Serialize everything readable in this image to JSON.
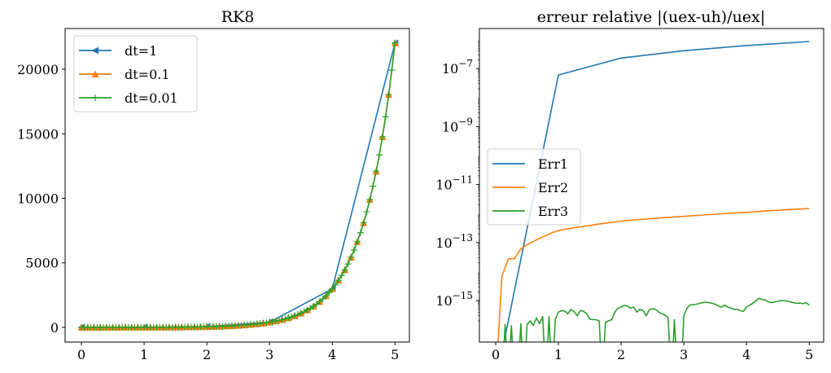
{
  "chart_data": [
    {
      "type": "line",
      "title": "RK8",
      "xlabel": "",
      "ylabel": "",
      "xlim": [
        -0.26,
        5.23
      ],
      "ylim": [
        -1136,
        23155
      ],
      "xticks": [
        0,
        1,
        2,
        3,
        4,
        5
      ],
      "xtick_labels": [
        "0",
        "1",
        "2",
        "3",
        "4",
        "5"
      ],
      "yticks": [
        0,
        5000,
        10000,
        15000,
        20000
      ],
      "ytick_labels": [
        "0",
        "5000",
        "10000",
        "15000",
        "20000"
      ],
      "legend_position": "upper-left",
      "series": [
        {
          "name": "dt=1",
          "color": "#1f77b4",
          "marker": "triangle-left",
          "x_start": 0,
          "x_step": 1,
          "values": [
            1,
            7.39,
            54.6,
            403.4,
            2981,
            22026
          ]
        },
        {
          "name": "dt=0.1",
          "color": "#ff7f0e",
          "marker": "triangle-up",
          "x_start": 0,
          "x_step": 0.1,
          "values": [
            1,
            1.22,
            1.49,
            1.82,
            2.23,
            2.72,
            3.32,
            4.06,
            4.95,
            6.05,
            7.39,
            9.03,
            11.0,
            13.5,
            16.4,
            20.1,
            24.5,
            30.0,
            36.6,
            44.7,
            54.6,
            66.7,
            81.5,
            99.5,
            121.5,
            148.4,
            181.3,
            221.4,
            270.4,
            330.3,
            403.4,
            492.7,
            601.8,
            735.1,
            897.8,
            1096.6,
            1339.4,
            1636,
            1998,
            2441,
            2981,
            3641,
            4447,
            5432,
            6634,
            8103,
            9897,
            12088,
            14765,
            18034,
            22026
          ]
        },
        {
          "name": "dt=0.01",
          "color": "#2ca02c",
          "marker": "plus",
          "x_start": 0,
          "x_step": 0.05,
          "values": [
            1,
            1.105,
            1.22,
            1.35,
            1.49,
            1.65,
            1.82,
            2.01,
            2.23,
            2.46,
            2.72,
            3.0,
            3.32,
            3.67,
            4.06,
            4.48,
            4.95,
            5.47,
            6.05,
            6.69,
            7.39,
            8.17,
            9.03,
            9.97,
            11.0,
            12.2,
            13.5,
            14.9,
            16.4,
            18.2,
            20.1,
            22.2,
            24.5,
            27.1,
            30.0,
            33.1,
            36.6,
            40.4,
            44.7,
            49.4,
            54.6,
            60.3,
            66.7,
            73.7,
            81.5,
            90.0,
            99.5,
            109.9,
            121.5,
            134.3,
            148.4,
            164,
            181.3,
            200.3,
            221.4,
            244.7,
            270.4,
            298.9,
            330.3,
            365,
            403.4,
            445.9,
            492.7,
            544.6,
            601.8,
            665.1,
            735.1,
            812.4,
            897.8,
            992.3,
            1096.6,
            1212,
            1339,
            1480,
            1636,
            1808,
            1998,
            2208,
            2441,
            2697,
            2981,
            3294,
            3641,
            4024,
            4447,
            4915,
            5432,
            6003,
            6634,
            7332,
            8103,
            8955,
            9897,
            10938,
            12088,
            13360,
            14765,
            16318,
            18034,
            19930,
            22026
          ]
        }
      ]
    },
    {
      "type": "line",
      "title": "erreur relative |(uex-uh)/uex|",
      "xlabel": "",
      "ylabel": "",
      "yscale": "log",
      "xlim": [
        -0.26,
        5.23
      ],
      "ylim_log10": [
        -16.43,
        -5.62
      ],
      "xticks": [
        0,
        1,
        2,
        3,
        4,
        5
      ],
      "xtick_labels": [
        "0",
        "1",
        "2",
        "3",
        "4",
        "5"
      ],
      "yticks_log10": [
        -7,
        -9,
        -11,
        -13,
        -15
      ],
      "ytick_labels": [
        {
          "base": "10",
          "exp": "−7"
        },
        {
          "base": "10",
          "exp": "−9"
        },
        {
          "base": "10",
          "exp": "−11"
        },
        {
          "base": "10",
          "exp": "−13"
        },
        {
          "base": "10",
          "exp": "−15"
        }
      ],
      "legend_position": "center-left",
      "series": [
        {
          "name": "Err1",
          "color": "#1f77b4",
          "x_start": 0,
          "x_step": 1,
          "values": [
            0,
            6e-08,
            2.3e-07,
            4.1e-07,
            6.2e-07,
            8.5e-07
          ]
        },
        {
          "name": "Err2",
          "color": "#ff7f0e",
          "x_start": 0,
          "x_step": 0.1,
          "values": [
            0,
            7e-15,
            2.7e-14,
            2.8e-14,
            6e-14,
            8.5e-14,
            1.1e-13,
            1.4e-13,
            1.75e-13,
            2.2e-13,
            2.6e-13,
            2.85e-13,
            3.1e-13,
            3.35e-13,
            3.6e-13,
            3.9e-13,
            4.2e-13,
            4.5e-13,
            4.8e-13,
            5.1e-13,
            5.5e-13,
            5.75e-13,
            6e-13,
            6.25e-13,
            6.5e-13,
            6.75e-13,
            7e-13,
            7.25e-13,
            7.5e-13,
            7.75e-13,
            8e-13,
            8.3e-13,
            8.6e-13,
            8.9e-13,
            9.2e-13,
            9.5e-13,
            9.8e-13,
            1.01e-12,
            1.04e-12,
            1.07e-12,
            1.1e-12,
            1.14e-12,
            1.18e-12,
            1.22e-12,
            1.26e-12,
            1.3e-12,
            1.34e-12,
            1.38e-12,
            1.42e-12,
            1.46e-12,
            1.5e-12
          ]
        },
        {
          "name": "Err3",
          "color": "#2ca02c",
          "x_start": 0,
          "x_step": 0.05,
          "values": [
            0,
            0,
            0,
            1.5e-16,
            0,
            1.4e-16,
            0,
            0,
            1.6e-16,
            0,
            1.5e-16,
            2e-16,
            1.4e-16,
            2.5e-16,
            1.6e-16,
            2.8e-16,
            0,
            2.8e-16,
            0,
            2.2e-16,
            4e-16,
            4.5e-16,
            4.4e-16,
            3.5e-16,
            5e-16,
            4.2e-16,
            3e-16,
            4.5e-16,
            4.3e-16,
            3.5e-16,
            2.3e-16,
            2.2e-16,
            2.2e-16,
            2e-16,
            0,
            1.8e-16,
            2e-16,
            2.2e-16,
            4e-16,
            5.5e-16,
            6e-16,
            6.8e-16,
            6.5e-16,
            5.5e-16,
            6e-16,
            4e-16,
            5e-16,
            4.5e-16,
            3e-16,
            4.8e-16,
            5.2e-16,
            5e-16,
            4e-16,
            3.5e-16,
            3.2e-16,
            2.5e-16,
            0,
            2.2e-16,
            0,
            0,
            3e-16,
            5.5e-16,
            7e-16,
            7.2e-16,
            7.5e-16,
            8e-16,
            8.5e-16,
            8.8e-16,
            8.5e-16,
            8e-16,
            7.5e-16,
            6.5e-16,
            6e-16,
            7e-16,
            6e-16,
            5.5e-16,
            5e-16,
            5e-16,
            4.5e-16,
            4.2e-16,
            6e-16,
            7e-16,
            8e-16,
            1e-15,
            1.2e-15,
            1.1e-15,
            1.05e-15,
            9e-16,
            8.5e-16,
            9e-16,
            9.5e-16,
            1e-15,
            1e-15,
            9.5e-16,
            9e-16,
            8.5e-16,
            8e-16,
            8.2e-16,
            7.8e-16,
            8.5e-16,
            7e-16
          ]
        }
      ]
    }
  ]
}
